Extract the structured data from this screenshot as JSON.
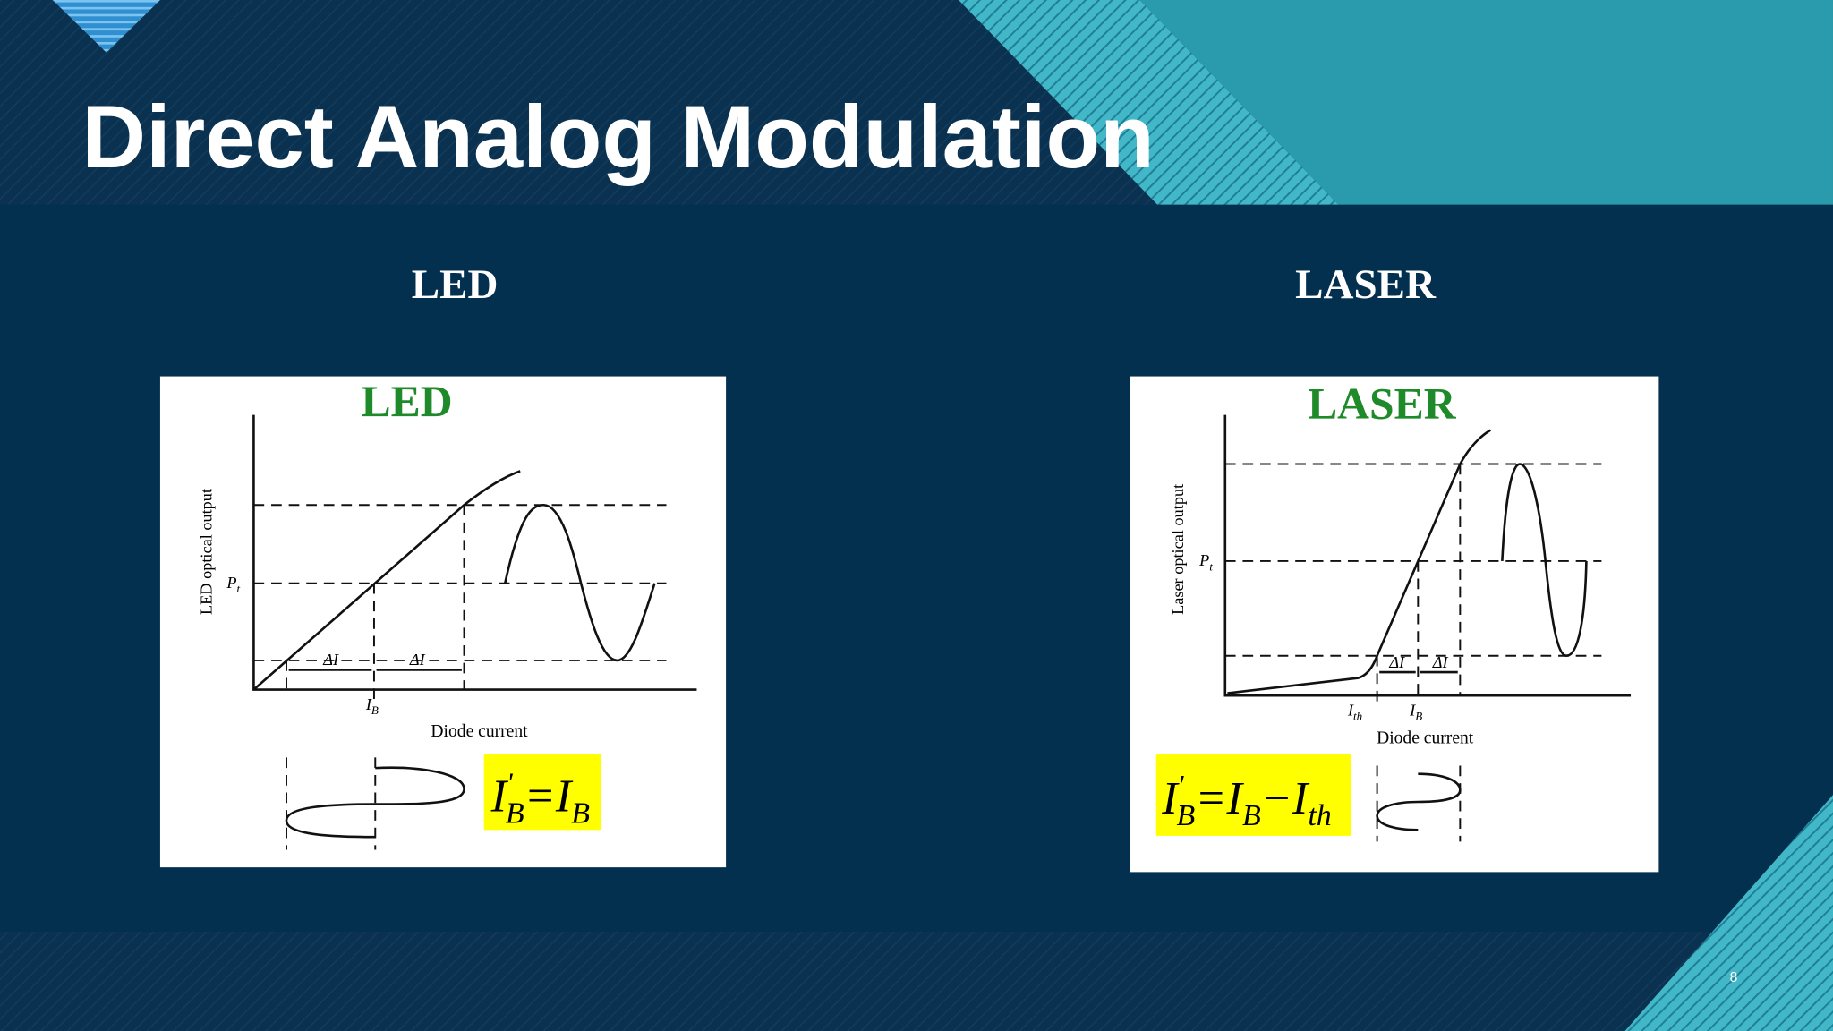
{
  "header": {
    "title": "Direct Analog Modulation"
  },
  "panels": [
    {
      "label": "LED",
      "figure": {
        "title": "LED",
        "y_axis": "LED optical output",
        "x_axis": "Diode current",
        "level": {
          "text": "P",
          "sub": "t"
        },
        "delta": "ΔI",
        "bias": {
          "text": "I",
          "sub": "B"
        },
        "equation": [
          {
            "text": "I",
            "pos": "base"
          },
          {
            "text": "'",
            "pos": "sup"
          },
          {
            "text": "B",
            "pos": "sub"
          },
          {
            "text": "=",
            "pos": "base"
          },
          {
            "text": "I",
            "pos": "base"
          },
          {
            "text": "B",
            "pos": "sub"
          }
        ]
      }
    },
    {
      "label": "LASER",
      "figure": {
        "title": "LASER",
        "y_axis": "Laser optical output",
        "x_axis": "Diode current",
        "level": {
          "text": "P",
          "sub": "t"
        },
        "delta": "ΔI",
        "threshold": {
          "text": "I",
          "sub": "th"
        },
        "bias": {
          "text": "I",
          "sub": "B"
        },
        "equation": [
          {
            "text": "I",
            "pos": "base"
          },
          {
            "text": "'",
            "pos": "sup"
          },
          {
            "text": "B",
            "pos": "sub"
          },
          {
            "text": "=",
            "pos": "base"
          },
          {
            "text": "I",
            "pos": "base"
          },
          {
            "text": "B",
            "pos": "sub"
          },
          {
            "text": "−",
            "pos": "base"
          },
          {
            "text": "I",
            "pos": "base"
          },
          {
            "text": "th",
            "pos": "sub"
          }
        ]
      }
    }
  ],
  "page_number": "8"
}
